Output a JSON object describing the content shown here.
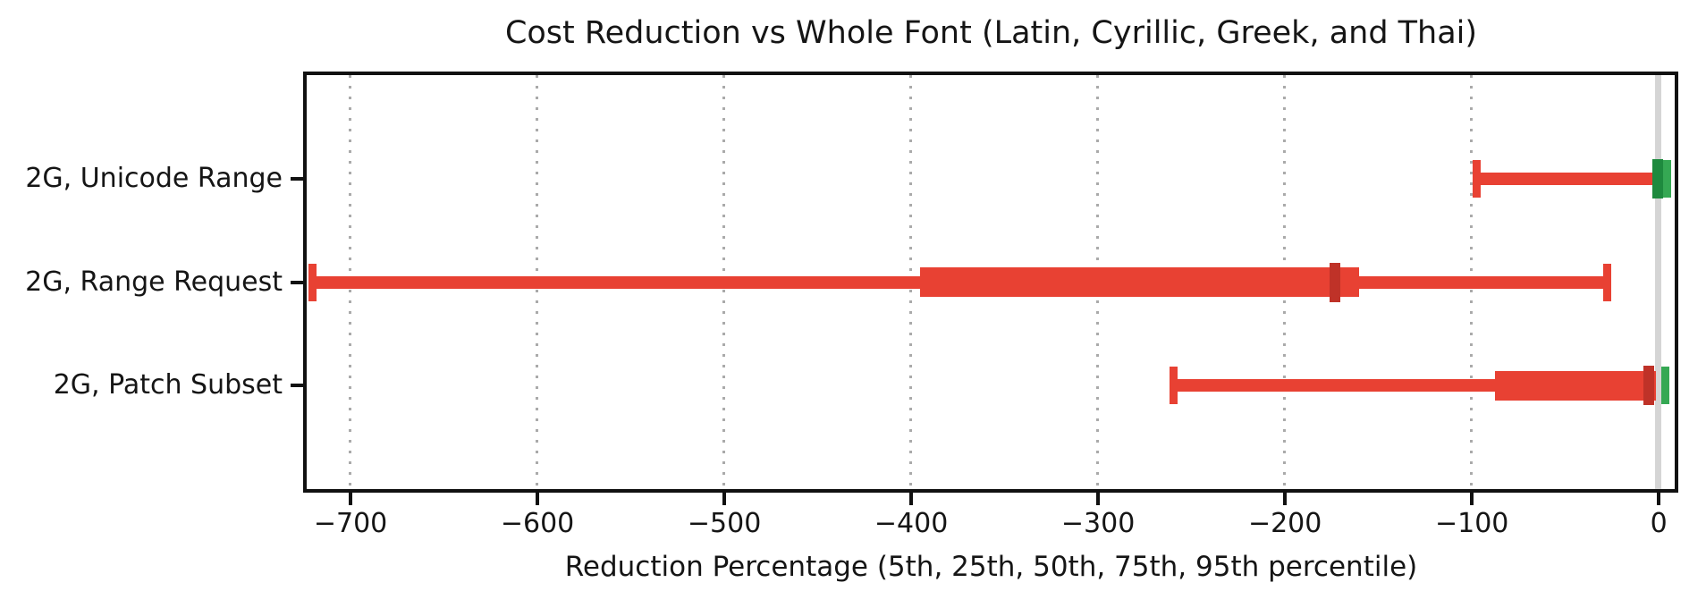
{
  "title": "Cost Reduction vs Whole Font (Latin, Cyrillic, Greek, and Thai)",
  "xlabel": "Reduction Percentage (5th, 25th, 50th, 75th, 95th percentile)",
  "colors": {
    "red": "#e84133",
    "dark_red": "#bf3228",
    "green": "#35a853",
    "dark_green": "#1e8a3e",
    "zero_line": "#d5d5d5",
    "grid": "#aaaaaa",
    "spine": "#111111",
    "text": "#151515",
    "background": "#ffffff"
  },
  "chart_data": {
    "type": "boxplot",
    "orientation": "horizontal",
    "title": "Cost Reduction vs Whole Font (Latin, Cyrillic, Greek, and Thai)",
    "xlabel": "Reduction Percentage (5th, 25th, 50th, 75th, 95th percentile)",
    "percentile_labels": [
      "5th",
      "25th",
      "50th",
      "75th",
      "95th"
    ],
    "categories": [
      "2G, Unicode Range",
      "2G, Range Request",
      "2G, Patch Subset"
    ],
    "xlim": [
      -723,
      9
    ],
    "xticks": [
      {
        "value": -700,
        "label": "−700"
      },
      {
        "value": -600,
        "label": "−600"
      },
      {
        "value": -500,
        "label": "−500"
      },
      {
        "value": -400,
        "label": "−400"
      },
      {
        "value": -300,
        "label": "−300"
      },
      {
        "value": -200,
        "label": "−200"
      },
      {
        "value": -100,
        "label": "−100"
      },
      {
        "value": 0,
        "label": "0"
      }
    ],
    "grid": {
      "vertical_dotted_at_ticks": true,
      "solid_reference_line_at": 0
    },
    "legend": null,
    "rows": [
      {
        "label": "2G, Unicode Range",
        "percentiles": {
          "p5": -97,
          "p25": -2,
          "p50": 0,
          "p75": 3,
          "p95": 5
        },
        "segments": [
          {
            "from": -97,
            "to": -2,
            "color": "red"
          }
        ],
        "box": {
          "from": -2,
          "to": 3,
          "color": "green"
        },
        "median": {
          "at": 0,
          "color": "dark_green"
        },
        "caps": [
          {
            "at": -97,
            "color": "red"
          },
          {
            "at": 5,
            "color": "green"
          }
        ]
      },
      {
        "label": "2G, Range Request",
        "percentiles": {
          "p5": -720,
          "p25": -395,
          "p50": -173,
          "p75": -160,
          "p95": -27
        },
        "segments": [
          {
            "from": -720,
            "to": -395,
            "color": "red"
          },
          {
            "from": -160,
            "to": -27,
            "color": "red"
          }
        ],
        "box": {
          "from": -395,
          "to": -160,
          "color": "red"
        },
        "median": {
          "at": -173,
          "color": "dark_red"
        },
        "caps": [
          {
            "at": -720,
            "color": "red"
          },
          {
            "at": -27,
            "color": "red"
          }
        ]
      },
      {
        "label": "2G, Patch Subset",
        "percentiles": {
          "p5": -259,
          "p25": -87,
          "p50": -5,
          "p75": -1,
          "p95": 4
        },
        "segments": [
          {
            "from": -259,
            "to": -87,
            "color": "red"
          }
        ],
        "box": {
          "from": -87,
          "to": -1,
          "color": "red"
        },
        "median": {
          "at": -5,
          "color": "dark_red"
        },
        "caps": [
          {
            "at": -259,
            "color": "red"
          },
          {
            "at": 4,
            "color": "green"
          }
        ]
      }
    ]
  }
}
